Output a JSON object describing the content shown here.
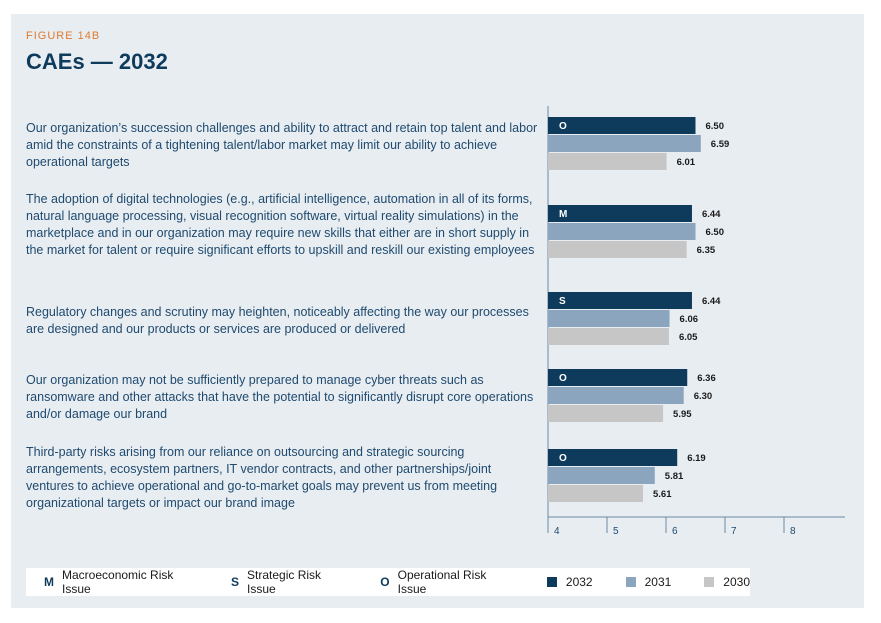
{
  "figure_label": "FIGURE 14B",
  "title": "CAEs — 2032",
  "colors": {
    "y2032": "#0e3a5c",
    "y2031": "#8aa5bd",
    "y2030": "#c6c6c6",
    "panel": "#e8edf2"
  },
  "legend": {
    "codes": [
      {
        "code": "M",
        "label": "Macroeconomic Risk Issue"
      },
      {
        "code": "S",
        "label": "Strategic Risk Issue"
      },
      {
        "code": "O",
        "label": "Operational Risk Issue"
      }
    ],
    "years": [
      {
        "label": "2032",
        "color": "#0e3a5c"
      },
      {
        "label": "2031",
        "color": "#8aa5bd"
      },
      {
        "label": "2030",
        "color": "#c6c6c6"
      }
    ]
  },
  "chart_data": {
    "type": "bar",
    "orientation": "horizontal",
    "xlim": [
      4,
      8
    ],
    "xticks": [
      "4",
      "5",
      "6",
      "7",
      "8"
    ],
    "categories": [
      "Our organization’s succession challenges and ability to attract and retain top talent and labor amid the constraints of a tightening talent/labor market may limit our ability to achieve operational targets",
      "The adoption of digital technologies (e.g., artificial intelligence, automation in all of its forms, natural language processing, visual recognition software, virtual reality simulations) in the marketplace and in our organization may require new skills that either are in short supply in the market for talent or require significant efforts to upskill and reskill our existing employees",
      "Regulatory changes and scrutiny may heighten, noticeably affecting the way our processes are designed and our products or services are produced or delivered",
      "Our organization may not be sufficiently prepared to manage cyber threats such as ransomware and other attacks that have the potential to significantly disrupt core operations and/or damage our brand",
      "Third-party risks arising from our reliance on outsourcing and strategic sourcing arrangements, ecosystem partners, IT vendor contracts, and other partnerships/joint ventures to achieve operational and go-to-market goals may prevent us from meeting organizational targets or impact our brand image"
    ],
    "risk_codes": [
      "O",
      "M",
      "S",
      "O",
      "O"
    ],
    "series": [
      {
        "name": "2032",
        "values": [
          6.5,
          6.44,
          6.44,
          6.36,
          6.19
        ],
        "labels": [
          "6.50",
          "6.44",
          "6.44",
          "6.36",
          "6.19"
        ]
      },
      {
        "name": "2031",
        "values": [
          6.59,
          6.5,
          6.06,
          6.3,
          5.81
        ],
        "labels": [
          "6.59",
          "6.50",
          "6.06",
          "6.30",
          "5.81"
        ]
      },
      {
        "name": "2030",
        "values": [
          6.01,
          6.35,
          6.05,
          5.95,
          5.61
        ],
        "labels": [
          "6.01",
          "6.35",
          "6.05",
          "5.95",
          "5.61"
        ]
      }
    ]
  }
}
